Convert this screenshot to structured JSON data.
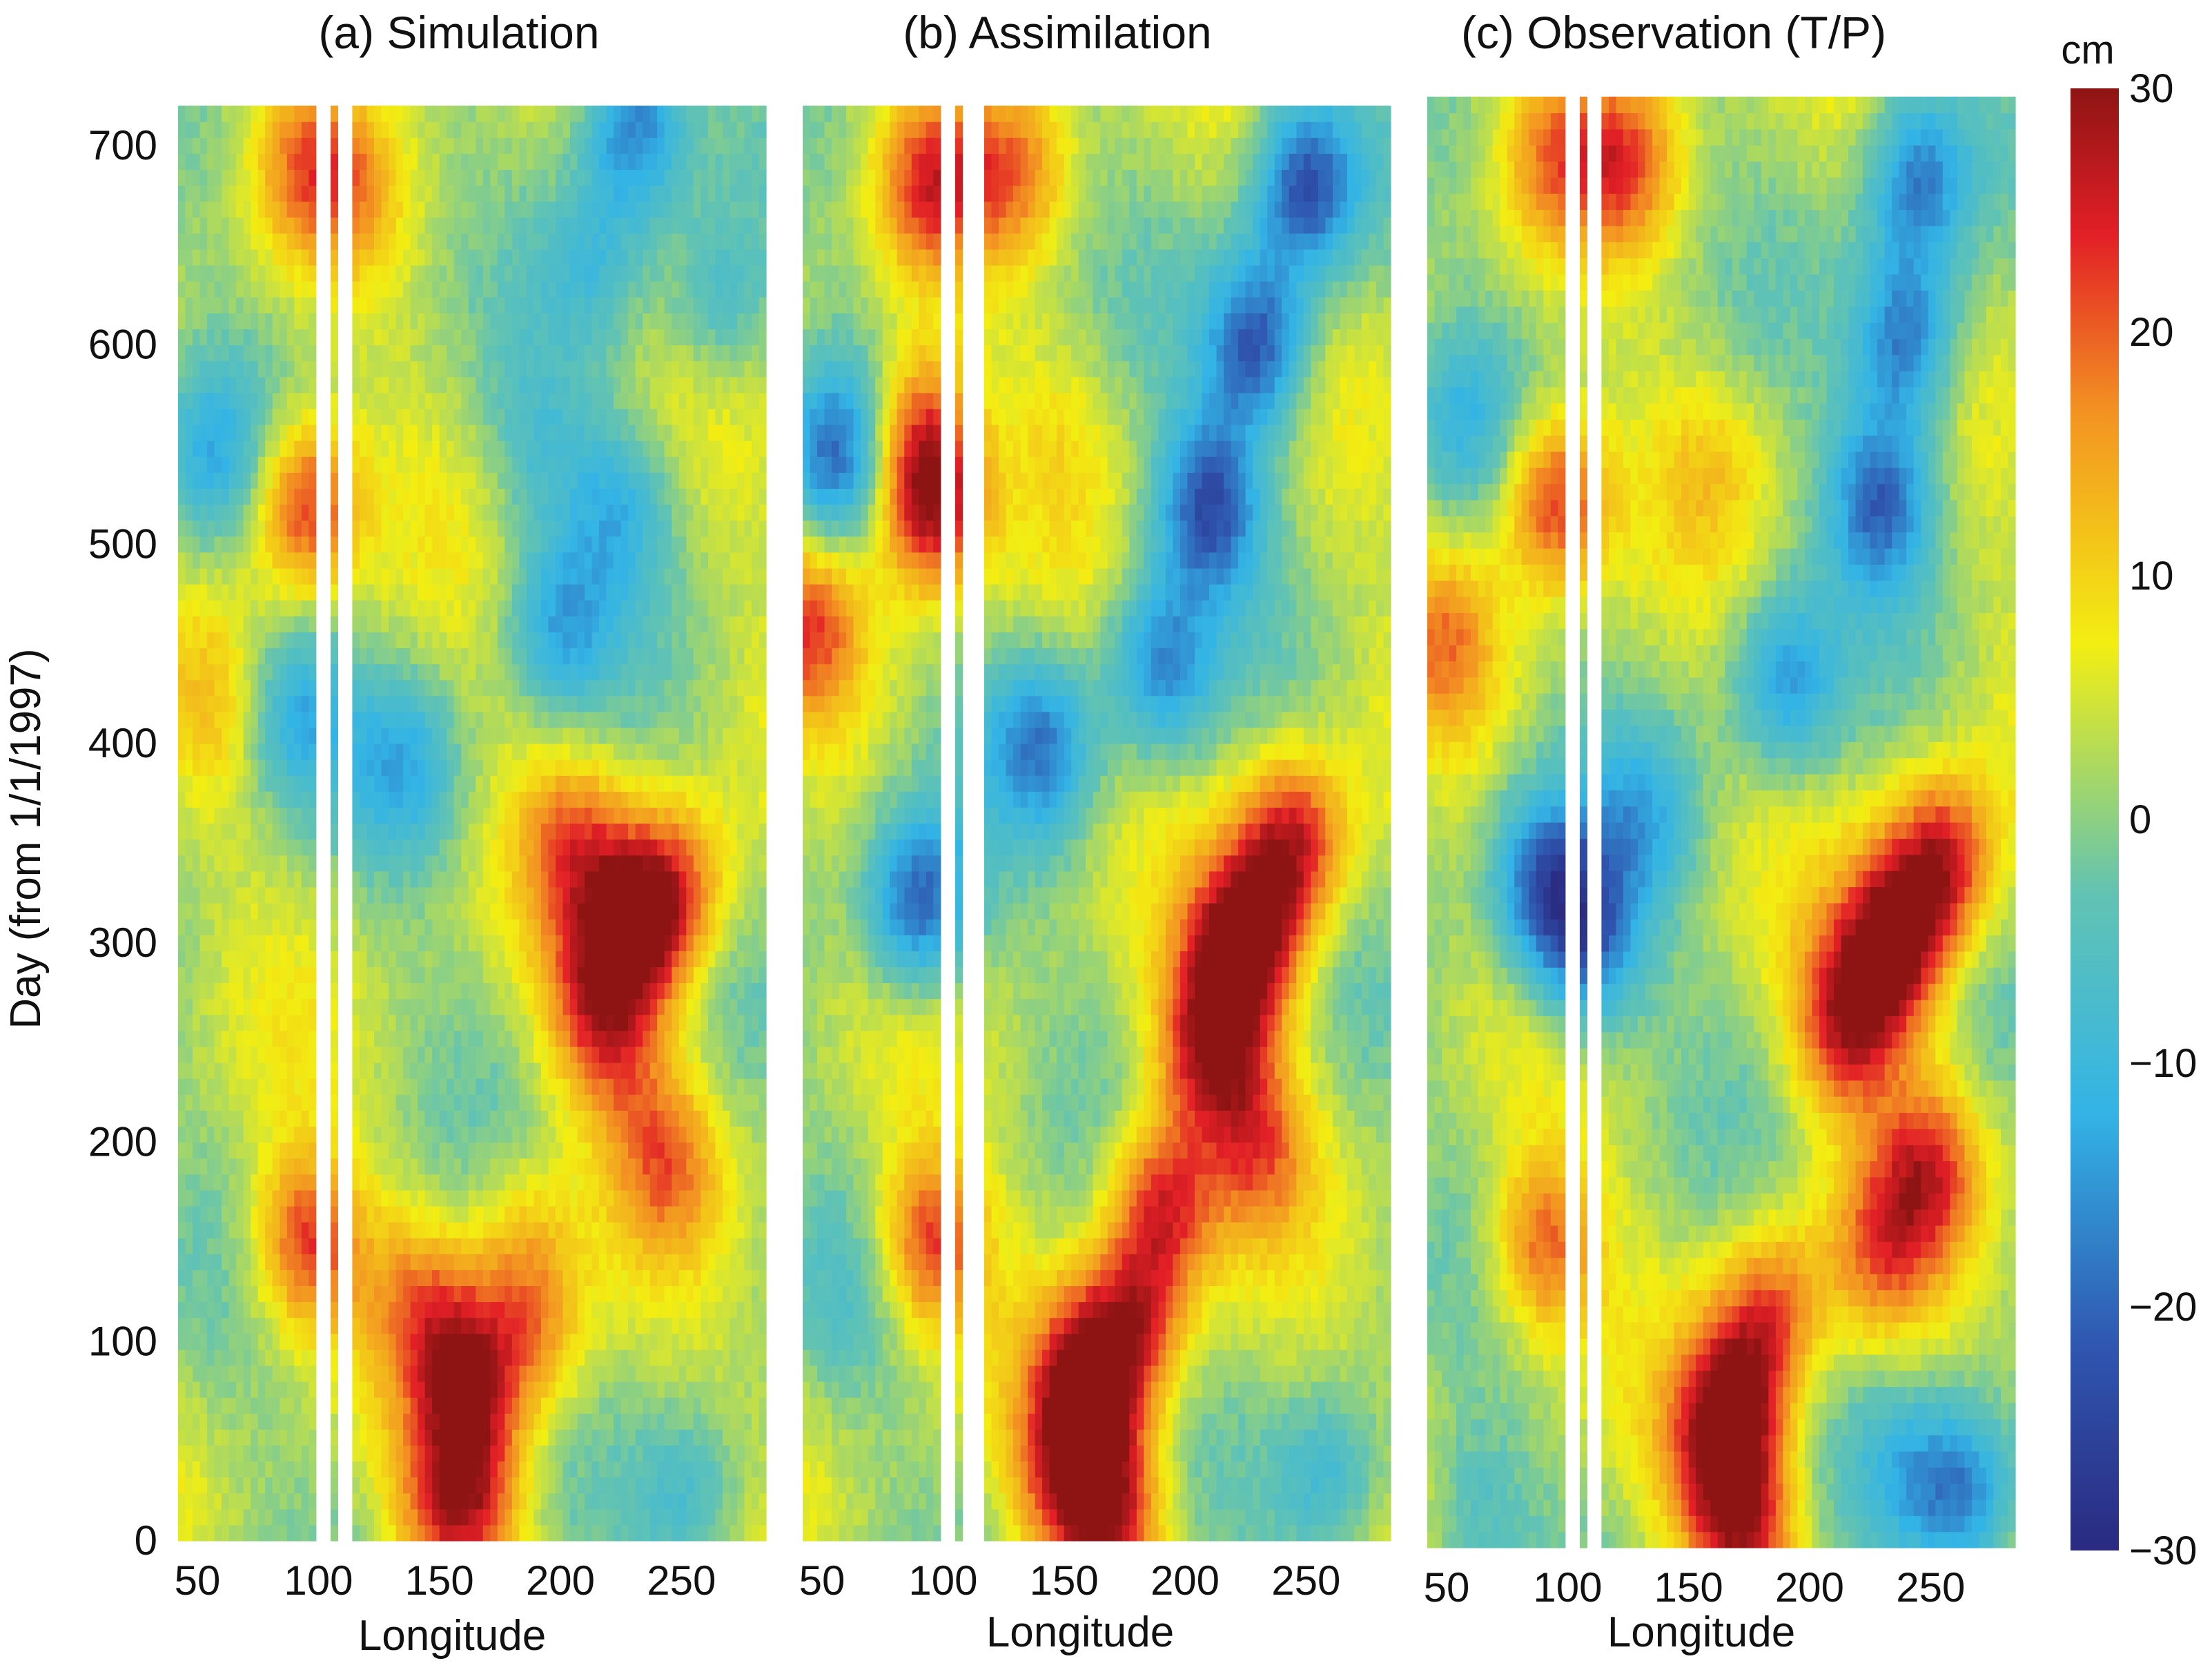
{
  "chart_data": [
    {
      "type": "heatmap",
      "title": "(a) Simulation",
      "xlabel": "Longitude",
      "ylabel": "Day (from 1/1/1997)",
      "x_ticks": [
        50,
        100,
        150,
        200,
        250
      ],
      "y_ticks": [
        0,
        100,
        200,
        300,
        400,
        500,
        600,
        700
      ],
      "xlim": [
        42,
        285
      ],
      "ylim": [
        0,
        720
      ],
      "gap_lon_ranges": [
        [
          100,
          105
        ],
        [
          109,
          113
        ]
      ],
      "features": [
        {
          "lon": 232,
          "day": 310,
          "value": 26
        },
        {
          "lon": 215,
          "day": 270,
          "value": 18
        },
        {
          "lon": 205,
          "day": 350,
          "value": 14
        },
        {
          "lon": 250,
          "day": 330,
          "value": 14
        },
        {
          "lon": 228,
          "day": 230,
          "value": 7
        },
        {
          "lon": 185,
          "day": 150,
          "value": 10
        },
        {
          "lon": 245,
          "day": 190,
          "value": 13
        },
        {
          "lon": 160,
          "day": 85,
          "value": 22
        },
        {
          "lon": 190,
          "day": 100,
          "value": 12
        },
        {
          "lon": 140,
          "day": 125,
          "value": 10
        },
        {
          "lon": 165,
          "day": 25,
          "value": 16
        },
        {
          "lon": 150,
          "day": 15,
          "value": 12
        },
        {
          "lon": 95,
          "day": 520,
          "value": 22
        },
        {
          "lon": 95,
          "day": 150,
          "value": 20
        },
        {
          "lon": 95,
          "day": 690,
          "value": 12
        },
        {
          "lon": 55,
          "day": 545,
          "value": -12
        },
        {
          "lon": 90,
          "day": 415,
          "value": -14
        },
        {
          "lon": 135,
          "day": 390,
          "value": -12
        },
        {
          "lon": 230,
          "day": 710,
          "value": -22
        },
        {
          "lon": 215,
          "day": 640,
          "value": -9
        },
        {
          "lon": 200,
          "day": 460,
          "value": -14
        },
        {
          "lon": 225,
          "day": 520,
          "value": -12
        },
        {
          "lon": 190,
          "day": 550,
          "value": -8
        },
        {
          "lon": 265,
          "day": 620,
          "value": -10
        },
        {
          "lon": 255,
          "day": 20,
          "value": -10
        },
        {
          "lon": 60,
          "day": 420,
          "value": 6
        },
        {
          "lon": 115,
          "day": 680,
          "value": 8
        }
      ]
    },
    {
      "type": "heatmap",
      "title": "(b) Assimilation",
      "xlabel": "Longitude",
      "ylabel": "",
      "x_ticks": [
        50,
        100,
        150,
        200,
        250
      ],
      "y_ticks": [
        0,
        100,
        200,
        300,
        400,
        500,
        600,
        700
      ],
      "xlim": [
        42,
        285
      ],
      "ylim": [
        0,
        720
      ],
      "gap_lon_ranges": [
        [
          100,
          105
        ],
        [
          109,
          115
        ]
      ],
      "features": [
        {
          "lon": 225,
          "day": 300,
          "value": 30
        },
        {
          "lon": 245,
          "day": 350,
          "value": 24
        },
        {
          "lon": 210,
          "day": 250,
          "value": 24
        },
        {
          "lon": 190,
          "day": 170,
          "value": 22
        },
        {
          "lon": 230,
          "day": 200,
          "value": 15
        },
        {
          "lon": 160,
          "day": 80,
          "value": 26
        },
        {
          "lon": 180,
          "day": 110,
          "value": 18
        },
        {
          "lon": 170,
          "day": 15,
          "value": 22
        },
        {
          "lon": 150,
          "day": 30,
          "value": 16
        },
        {
          "lon": 95,
          "day": 520,
          "value": 26
        },
        {
          "lon": 90,
          "day": 560,
          "value": 16
        },
        {
          "lon": 95,
          "day": 150,
          "value": 20
        },
        {
          "lon": 95,
          "day": 680,
          "value": 18
        },
        {
          "lon": 45,
          "day": 460,
          "value": 16
        },
        {
          "lon": 130,
          "day": 690,
          "value": 14
        },
        {
          "lon": 230,
          "day": 600,
          "value": -25
        },
        {
          "lon": 250,
          "day": 680,
          "value": -25
        },
        {
          "lon": 210,
          "day": 520,
          "value": -24
        },
        {
          "lon": 190,
          "day": 440,
          "value": -18
        },
        {
          "lon": 140,
          "day": 400,
          "value": -18
        },
        {
          "lon": 90,
          "day": 320,
          "value": -24
        },
        {
          "lon": 55,
          "day": 545,
          "value": -20
        },
        {
          "lon": 260,
          "day": 30,
          "value": -12
        },
        {
          "lon": 60,
          "day": 120,
          "value": -4
        },
        {
          "lon": 150,
          "day": 560,
          "value": 4
        }
      ]
    },
    {
      "type": "heatmap",
      "title": "(c) Observation (T/P)",
      "xlabel": "Longitude",
      "ylabel": "",
      "x_ticks": [
        50,
        100,
        150,
        200,
        250
      ],
      "y_ticks": [
        0,
        100,
        200,
        300,
        400,
        500,
        600,
        700
      ],
      "xlim": [
        42,
        285
      ],
      "ylim": [
        0,
        720
      ],
      "gap_lon_ranges": [
        [
          101,
          105
        ],
        [
          110,
          114
        ]
      ],
      "features": [
        {
          "lon": 235,
          "day": 300,
          "value": 28
        },
        {
          "lon": 255,
          "day": 340,
          "value": 24
        },
        {
          "lon": 215,
          "day": 260,
          "value": 22
        },
        {
          "lon": 250,
          "day": 190,
          "value": 18
        },
        {
          "lon": 230,
          "day": 150,
          "value": 14
        },
        {
          "lon": 170,
          "day": 75,
          "value": 22
        },
        {
          "lon": 185,
          "day": 120,
          "value": 16
        },
        {
          "lon": 175,
          "day": 10,
          "value": 20
        },
        {
          "lon": 160,
          "day": 40,
          "value": 14
        },
        {
          "lon": 95,
          "day": 520,
          "value": 22
        },
        {
          "lon": 90,
          "day": 150,
          "value": 18
        },
        {
          "lon": 125,
          "day": 690,
          "value": 16
        },
        {
          "lon": 95,
          "day": 690,
          "value": 12
        },
        {
          "lon": 50,
          "day": 450,
          "value": 12
        },
        {
          "lon": 240,
          "day": 600,
          "value": -22
        },
        {
          "lon": 245,
          "day": 680,
          "value": -20
        },
        {
          "lon": 230,
          "day": 520,
          "value": -22
        },
        {
          "lon": 190,
          "day": 430,
          "value": -16
        },
        {
          "lon": 90,
          "day": 330,
          "value": -22
        },
        {
          "lon": 130,
          "day": 360,
          "value": -12
        },
        {
          "lon": 108,
          "day": 300,
          "value": -22
        },
        {
          "lon": 55,
          "day": 560,
          "value": -10
        },
        {
          "lon": 265,
          "day": 25,
          "value": -20
        },
        {
          "lon": 240,
          "day": 40,
          "value": -10
        },
        {
          "lon": 60,
          "day": 20,
          "value": -8
        },
        {
          "lon": 160,
          "day": 540,
          "value": 6
        }
      ]
    }
  ],
  "colorbar": {
    "label": "cm",
    "ticks": [
      30,
      20,
      10,
      0,
      -10,
      -20,
      -30
    ],
    "tick_labels": [
      "30",
      "20",
      "10",
      "0",
      "−10",
      "−20",
      "−30"
    ],
    "range": [
      -30,
      30
    ],
    "colormap": [
      "#2a2a80",
      "#2f56b0",
      "#33b4e6",
      "#62c3b2",
      "#f3ee12",
      "#f39222",
      "#e21f26",
      "#8e1414"
    ]
  }
}
